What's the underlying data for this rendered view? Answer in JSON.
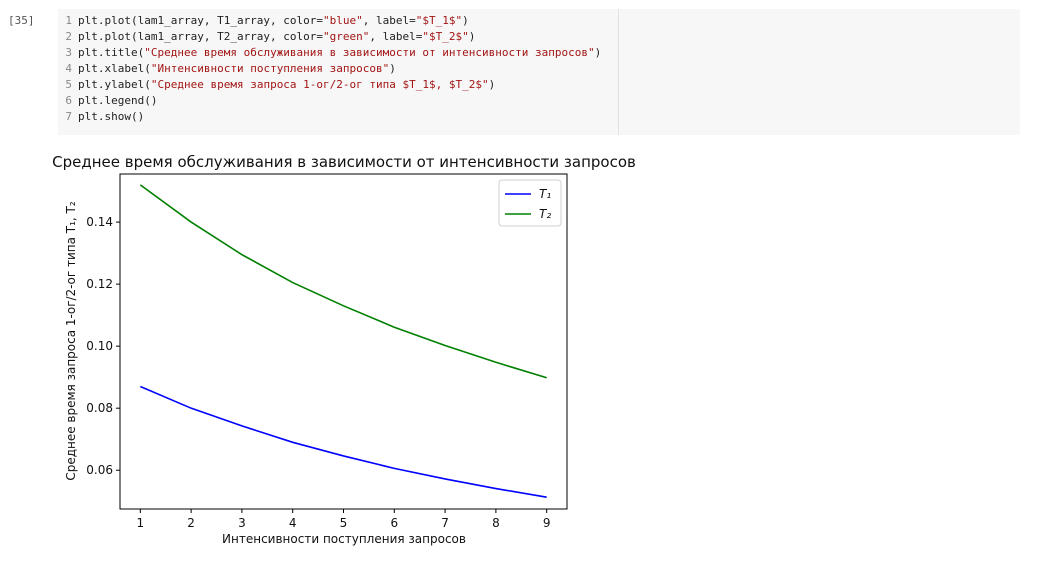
{
  "cell": {
    "prompt": "[35]",
    "lines": [
      {
        "num": "1",
        "parts": [
          {
            "t": "plt.plot(lam1_array, T1_array, color=",
            "c": "fn"
          },
          {
            "t": "\"blue\"",
            "c": "str"
          },
          {
            "t": ", label=",
            "c": "fn"
          },
          {
            "t": "\"$T_1$\"",
            "c": "str"
          },
          {
            "t": ")",
            "c": "fn"
          }
        ]
      },
      {
        "num": "2",
        "parts": [
          {
            "t": "plt.plot(lam1_array, T2_array, color=",
            "c": "fn"
          },
          {
            "t": "\"green\"",
            "c": "str"
          },
          {
            "t": ", label=",
            "c": "fn"
          },
          {
            "t": "\"$T_2$\"",
            "c": "str"
          },
          {
            "t": ")",
            "c": "fn"
          }
        ]
      },
      {
        "num": "3",
        "parts": [
          {
            "t": "plt.title(",
            "c": "fn"
          },
          {
            "t": "\"Среднее время обслуживания в зависимости от интенсивности запросов\"",
            "c": "str"
          },
          {
            "t": ")",
            "c": "fn"
          }
        ]
      },
      {
        "num": "4",
        "parts": [
          {
            "t": "plt.xlabel(",
            "c": "fn"
          },
          {
            "t": "\"Интенсивности поступления запросов\"",
            "c": "str"
          },
          {
            "t": ")",
            "c": "fn"
          }
        ]
      },
      {
        "num": "5",
        "parts": [
          {
            "t": "plt.ylabel(",
            "c": "fn"
          },
          {
            "t": "\"Среднее время запроса 1-ог/2-ог типа $T_1$, $T_2$\"",
            "c": "str"
          },
          {
            "t": ")",
            "c": "fn"
          }
        ]
      },
      {
        "num": "6",
        "parts": [
          {
            "t": "plt.legend()",
            "c": "fn"
          }
        ]
      },
      {
        "num": "7",
        "parts": [
          {
            "t": "plt.show()",
            "c": "fn"
          }
        ]
      }
    ]
  },
  "chart_data": {
    "type": "line",
    "title": "Среднее время обслуживания в зависимости от интенсивности запросов",
    "xlabel": "Интенсивности поступления запросов",
    "ylabel": "Среднее время запроса 1-ог/2-ог типа T₁, T₂",
    "x": [
      1,
      2,
      3,
      4,
      5,
      6,
      7,
      8,
      9
    ],
    "xlim": [
      0.6,
      9.4
    ],
    "ylim": [
      0.0475,
      0.1555
    ],
    "xticks": [
      1,
      2,
      3,
      4,
      5,
      6,
      7,
      8,
      9
    ],
    "yticks": [
      0.06,
      0.08,
      0.1,
      0.12,
      0.14
    ],
    "ytick_labels": [
      "0.06",
      "0.08",
      "0.10",
      "0.12",
      "0.14"
    ],
    "legend_position": "top-right",
    "series": [
      {
        "name": "T₁",
        "color": "#0000ff",
        "values": [
          0.087,
          0.08,
          0.0743,
          0.069,
          0.0646,
          0.0606,
          0.0572,
          0.0541,
          0.0513
        ]
      },
      {
        "name": "T₂",
        "color": "#008000",
        "values": [
          0.152,
          0.14,
          0.1295,
          0.1205,
          0.113,
          0.1061,
          0.1002,
          0.0948,
          0.0898
        ]
      }
    ]
  }
}
